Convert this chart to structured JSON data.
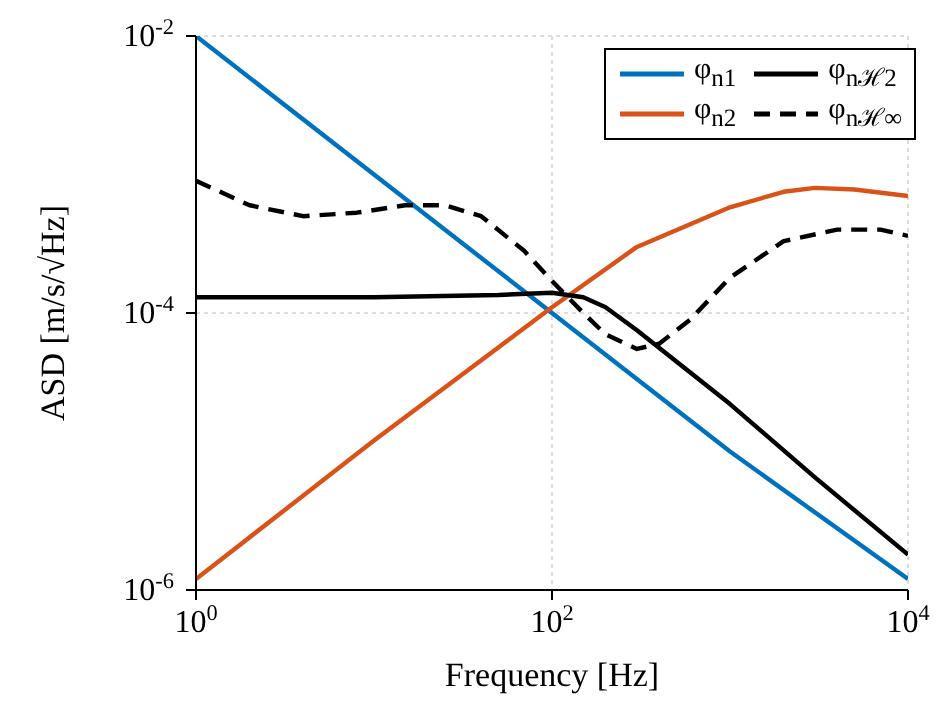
{
  "chart_data": {
    "type": "line",
    "xlabel": "Frequency [Hz]",
    "ylabel": "ASD [m/s/√Hz]",
    "log": "xy",
    "grid": true,
    "legend": "top right",
    "marker": "none",
    "xlim": [
      1,
      10000
    ],
    "xticks": [
      {
        "value": 1,
        "label": "10$^{0}$"
      },
      {
        "value": 100,
        "label": "10$^{2}$"
      },
      {
        "value": 10000,
        "label": "10$^{4}$"
      }
    ],
    "ylim": [
      1e-06,
      0.01
    ],
    "yticks": [
      {
        "value": 1e-06,
        "label": "10$^{-6}$"
      },
      {
        "value": 0.0001,
        "label": "10$^{-4}$"
      },
      {
        "value": 0.01,
        "label": "10$^{-2}$"
      }
    ],
    "series": [
      {
        "name": "φ$_{n1}$",
        "color": "#0072bd",
        "line_style": "solid",
        "x": [
          1,
          10,
          100,
          1000,
          10000
        ],
        "values": [
          0.01,
          0.001,
          0.0001,
          1e-05,
          1.2e-06
        ]
      },
      {
        "name": "φ$_{n2}$",
        "color": "#d95319",
        "line_style": "solid",
        "x": [
          1,
          10,
          100,
          300,
          1000,
          2000,
          3000,
          5000,
          10000
        ],
        "values": [
          1.2e-06,
          1.2e-05,
          0.00011,
          0.0003,
          0.00058,
          0.00075,
          0.0008,
          0.00078,
          0.0007
        ]
      },
      {
        "name": "φ$_{nℋ2}$",
        "color": "#000000",
        "line_style": "solid",
        "x": [
          1,
          10,
          50,
          100,
          150,
          200,
          300,
          1000,
          3000,
          10000
        ],
        "values": [
          0.00013,
          0.00013,
          0.000135,
          0.00014,
          0.00013,
          0.00011,
          7.5e-05,
          2.2e-05,
          6.5e-06,
          1.8e-06
        ]
      },
      {
        "name": "φ$_{nℋ∞}$",
        "color": "#000000",
        "line_style": "dashed",
        "x": [
          1,
          2,
          4,
          8,
          15,
          25,
          40,
          70,
          100,
          150,
          200,
          300,
          400,
          600,
          1000,
          2000,
          4000,
          7000,
          10000
        ],
        "values": [
          0.0009,
          0.0006,
          0.0005,
          0.00053,
          0.0006,
          0.0006,
          0.0005,
          0.00028,
          0.00017,
          0.0001,
          7e-05,
          5.5e-05,
          6e-05,
          9e-05,
          0.00018,
          0.00033,
          0.0004,
          0.0004,
          0.00036
        ]
      }
    ]
  }
}
